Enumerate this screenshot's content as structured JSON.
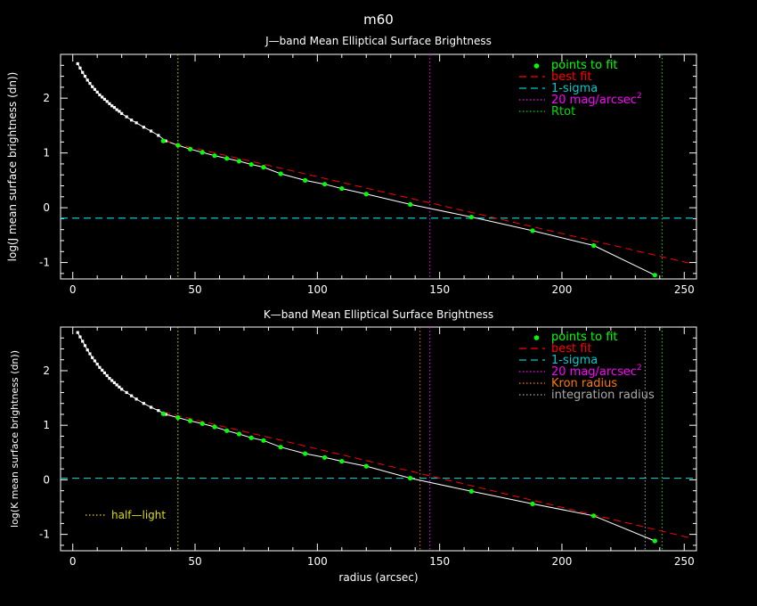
{
  "figure_title": "m60",
  "colors": {
    "background": "#000000",
    "axes": "#ffffff",
    "profile": "#ffffff",
    "fit_points": "#00ff00",
    "best_fit": "#ff0000",
    "sigma": "#00c8c8",
    "mag20": "#ff00ff",
    "rtot": "#00dd00",
    "half_light": "#dddd00",
    "kron": "#ff7a00",
    "integration": "#aaaaaa"
  },
  "xlabel": "radius (arcsec)",
  "chart_data": [
    {
      "type": "line",
      "title": "J—band Mean Elliptical Surface Brightness",
      "xlabel": "",
      "ylabel": "log(J mean surface brightness (dn))",
      "xlim": [
        -5,
        255
      ],
      "ylim": [
        -1.3,
        2.8
      ],
      "xticks": [
        0,
        50,
        100,
        150,
        200,
        250
      ],
      "yticks": [
        -1,
        0,
        1,
        2
      ],
      "grid": false,
      "legend_position": "top-right",
      "legend": [
        {
          "label": "points to fit",
          "style": "dot",
          "color": "#00ff00"
        },
        {
          "label": "best fit",
          "style": "dashed",
          "color": "#ff0000"
        },
        {
          "label": "1-sigma",
          "style": "dashed",
          "color": "#00c8c8"
        },
        {
          "label": "20 mag/arcsec",
          "sup": "2",
          "style": "dotted",
          "color": "#ff00ff"
        },
        {
          "label": "Rtot",
          "style": "dotted",
          "color": "#00dd00"
        }
      ],
      "profile": {
        "x": [
          2,
          3,
          4,
          5,
          6,
          7,
          8,
          9,
          10,
          11,
          12,
          13,
          14,
          15,
          16,
          17,
          18,
          19,
          20,
          22,
          24,
          26,
          29,
          32,
          35,
          38,
          43,
          48,
          53,
          58,
          63,
          68,
          73,
          78,
          85,
          95,
          103,
          110,
          120,
          138,
          163,
          188,
          213,
          238
        ],
        "y": [
          2.63,
          2.55,
          2.47,
          2.4,
          2.33,
          2.27,
          2.21,
          2.16,
          2.11,
          2.06,
          2.02,
          1.98,
          1.94,
          1.9,
          1.86,
          1.83,
          1.79,
          1.76,
          1.72,
          1.66,
          1.6,
          1.55,
          1.47,
          1.4,
          1.32,
          1.22,
          1.14,
          1.07,
          1.01,
          0.95,
          0.9,
          0.85,
          0.79,
          0.74,
          0.62,
          0.5,
          0.43,
          0.35,
          0.25,
          0.06,
          -0.17,
          -0.42,
          -0.69,
          -1.23
        ]
      },
      "fit_points": {
        "x": [
          37,
          43,
          48,
          53,
          58,
          63,
          68,
          73,
          78,
          85,
          95,
          103,
          110,
          120,
          138,
          163,
          188,
          213,
          238
        ],
        "y": [
          1.22,
          1.14,
          1.07,
          1.01,
          0.95,
          0.9,
          0.85,
          0.79,
          0.74,
          0.62,
          0.5,
          0.43,
          0.35,
          0.25,
          0.06,
          -0.17,
          -0.42,
          -0.69,
          -1.23
        ]
      },
      "best_fit": {
        "x": [
          37,
          252
        ],
        "y": [
          1.22,
          -1.01
        ]
      },
      "hlines": [
        {
          "y": -0.19,
          "color": "#00c8c8",
          "style": "dashed"
        }
      ],
      "vlines": [
        {
          "x": 43,
          "color": "#dddd00",
          "style": "dotted"
        },
        {
          "x": 146,
          "color": "#ff00ff",
          "style": "dotted"
        },
        {
          "x": 241,
          "color": "#00dd00",
          "style": "dotted"
        }
      ]
    },
    {
      "type": "line",
      "title": "K—band Mean Elliptical Surface Brightness",
      "xlabel": "radius (arcsec)",
      "ylabel": "log(K mean surface brightness (dn))",
      "xlim": [
        -5,
        255
      ],
      "ylim": [
        -1.3,
        2.8
      ],
      "xticks": [
        0,
        50,
        100,
        150,
        200,
        250
      ],
      "yticks": [
        -1,
        0,
        1,
        2
      ],
      "grid": false,
      "legend_position": "top-right",
      "legend": [
        {
          "label": "points to fit",
          "style": "dot",
          "color": "#00ff00"
        },
        {
          "label": "best fit",
          "style": "dashed",
          "color": "#ff0000"
        },
        {
          "label": "1-sigma",
          "style": "dashed",
          "color": "#00c8c8"
        },
        {
          "label": "20 mag/arcsec",
          "sup": "2",
          "style": "dotted",
          "color": "#ff00ff"
        },
        {
          "label": "Kron radius",
          "style": "dotted",
          "color": "#ff7a00"
        },
        {
          "label": "integration radius",
          "style": "dotted",
          "color": "#aaaaaa"
        }
      ],
      "annotation": {
        "label": "half—light",
        "color": "#dddd00"
      },
      "profile": {
        "x": [
          2,
          3,
          4,
          5,
          6,
          7,
          8,
          9,
          10,
          11,
          12,
          13,
          14,
          15,
          16,
          17,
          18,
          19,
          20,
          22,
          24,
          26,
          29,
          32,
          35,
          38,
          43,
          48,
          53,
          58,
          63,
          68,
          73,
          78,
          85,
          95,
          103,
          110,
          120,
          138,
          163,
          188,
          213,
          238
        ],
        "y": [
          2.7,
          2.62,
          2.54,
          2.46,
          2.38,
          2.31,
          2.24,
          2.18,
          2.12,
          2.06,
          2.01,
          1.96,
          1.91,
          1.86,
          1.82,
          1.78,
          1.74,
          1.7,
          1.66,
          1.6,
          1.54,
          1.48,
          1.4,
          1.33,
          1.27,
          1.2,
          1.14,
          1.08,
          1.03,
          0.97,
          0.9,
          0.84,
          0.77,
          0.72,
          0.6,
          0.48,
          0.41,
          0.34,
          0.25,
          0.03,
          -0.21,
          -0.44,
          -0.66,
          -1.12
        ]
      },
      "fit_points": {
        "x": [
          37,
          43,
          48,
          53,
          58,
          63,
          68,
          73,
          78,
          85,
          95,
          103,
          110,
          120,
          138,
          163,
          188,
          213,
          238
        ],
        "y": [
          1.21,
          1.14,
          1.08,
          1.03,
          0.97,
          0.9,
          0.84,
          0.77,
          0.72,
          0.6,
          0.48,
          0.41,
          0.34,
          0.25,
          0.03,
          -0.21,
          -0.44,
          -0.66,
          -1.12
        ]
      },
      "best_fit": {
        "x": [
          37,
          252
        ],
        "y": [
          1.24,
          -1.06
        ]
      },
      "hlines": [
        {
          "y": 0.03,
          "color": "#00c8c8",
          "style": "dashed"
        }
      ],
      "vlines": [
        {
          "x": 43,
          "color": "#dddd00",
          "style": "dotted"
        },
        {
          "x": 142,
          "color": "#ff7a00",
          "style": "dotted"
        },
        {
          "x": 146,
          "color": "#ff00ff",
          "style": "dotted"
        },
        {
          "x": 234,
          "color": "#aaaaaa",
          "style": "dotted"
        },
        {
          "x": 241,
          "color": "#00dd00",
          "style": "dotted"
        }
      ]
    }
  ]
}
